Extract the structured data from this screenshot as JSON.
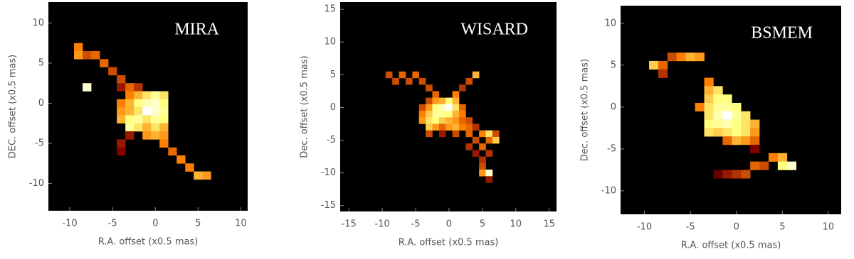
{
  "chart_data": [
    {
      "type": "heatmap",
      "title": "MIRA",
      "xlabel": "R.A. offset (x0.5 mas)",
      "ylabel": "DEC. offset (x0.5 mas)",
      "xlim": [
        -12.5,
        10.8
      ],
      "ylim": [
        -13.4,
        12.6
      ],
      "xticks": [
        -10,
        -5,
        0,
        5,
        10
      ],
      "yticks": [
        -10,
        -5,
        0,
        5,
        10
      ],
      "colormap": "afmhot",
      "cells": [
        [
          -9,
          7,
          0.5
        ],
        [
          -9,
          6,
          0.55
        ],
        [
          -8,
          6,
          0.4
        ],
        [
          -7,
          6,
          0.45
        ],
        [
          -6,
          5,
          0.45
        ],
        [
          -5,
          4,
          0.4
        ],
        [
          -4,
          3,
          0.4
        ],
        [
          -8,
          2,
          0.9
        ],
        [
          -4,
          2,
          0.3
        ],
        [
          -3,
          2,
          0.45
        ],
        [
          -2,
          2,
          0.35
        ],
        [
          -3,
          1,
          0.5
        ],
        [
          -2,
          1,
          0.6
        ],
        [
          -1,
          1,
          0.7
        ],
        [
          0,
          1,
          0.8
        ],
        [
          1,
          1,
          0.7
        ],
        [
          -4,
          0,
          0.5
        ],
        [
          -3,
          0,
          0.6
        ],
        [
          -2,
          0,
          0.75
        ],
        [
          -1,
          0,
          0.85
        ],
        [
          0,
          0,
          0.9
        ],
        [
          1,
          0,
          0.75
        ],
        [
          -4,
          -1,
          0.55
        ],
        [
          -3,
          -1,
          0.6
        ],
        [
          -2,
          -1,
          0.7
        ],
        [
          -1,
          -1,
          1
        ],
        [
          0,
          -1,
          0.9
        ],
        [
          1,
          -1,
          0.8
        ],
        [
          -4,
          -2,
          0.6
        ],
        [
          -3,
          -2,
          0.75
        ],
        [
          -2,
          -2,
          0.8
        ],
        [
          -1,
          -2,
          0.7
        ],
        [
          0,
          -2,
          0.8
        ],
        [
          1,
          -2,
          0.75
        ],
        [
          -3,
          -3,
          0.8
        ],
        [
          -2,
          -3,
          0.7
        ],
        [
          -1,
          -3,
          0.6
        ],
        [
          0,
          -3,
          0.7
        ],
        [
          1,
          -3,
          0.6
        ],
        [
          -3,
          -4,
          0.3
        ],
        [
          -1,
          -4,
          0.55
        ],
        [
          0,
          -4,
          0.6
        ],
        [
          1,
          -4,
          0.55
        ],
        [
          -4,
          -5,
          0.3
        ],
        [
          -4,
          -6,
          0.25
        ],
        [
          1,
          -5,
          0.5
        ],
        [
          2,
          -6,
          0.45
        ],
        [
          3,
          -7,
          0.5
        ],
        [
          4,
          -8,
          0.5
        ],
        [
          5,
          -9,
          0.6
        ],
        [
          6,
          -9,
          0.55
        ]
      ]
    },
    {
      "type": "heatmap",
      "title": "WISARD",
      "xlabel": "R.A. offset (x0.5 mas)",
      "ylabel": "Dec. offset (x0.5 mas)",
      "xlim": [
        -16.3,
        16.1
      ],
      "ylim": [
        -15.9,
        16.1
      ],
      "xticks": [
        -15,
        -10,
        -5,
        0,
        5,
        10,
        15
      ],
      "yticks": [
        -15,
        -10,
        -5,
        0,
        5,
        10,
        15
      ],
      "colormap": "afmhot",
      "cells": [
        [
          -9,
          5,
          0.4
        ],
        [
          -8,
          4,
          0.4
        ],
        [
          -7,
          5,
          0.45
        ],
        [
          -6,
          4,
          0.4
        ],
        [
          -5,
          5,
          0.45
        ],
        [
          -4,
          4,
          0.4
        ],
        [
          -3,
          3,
          0.4
        ],
        [
          -2,
          2,
          0.45
        ],
        [
          3,
          4,
          0.4
        ],
        [
          4,
          5,
          0.6
        ],
        [
          2,
          3,
          0.35
        ],
        [
          1,
          2,
          0.5
        ],
        [
          -3,
          1,
          0.4
        ],
        [
          -2,
          1,
          0.55
        ],
        [
          -1,
          1,
          0.6
        ],
        [
          0,
          1,
          0.75
        ],
        [
          1,
          1,
          0.6
        ],
        [
          -4,
          0,
          0.4
        ],
        [
          -3,
          0,
          0.55
        ],
        [
          -2,
          0,
          0.75
        ],
        [
          -1,
          0,
          0.85
        ],
        [
          0,
          0,
          1
        ],
        [
          1,
          0,
          0.7
        ],
        [
          2,
          0,
          0.45
        ],
        [
          -4,
          -1,
          0.5
        ],
        [
          -3,
          -1,
          0.65
        ],
        [
          -2,
          -1,
          0.8
        ],
        [
          -1,
          -1,
          0.8
        ],
        [
          0,
          -1,
          0.75
        ],
        [
          1,
          -1,
          0.6
        ],
        [
          2,
          -1,
          0.5
        ],
        [
          -4,
          -2,
          0.55
        ],
        [
          -3,
          -2,
          0.7
        ],
        [
          -2,
          -2,
          0.75
        ],
        [
          -1,
          -2,
          0.65
        ],
        [
          0,
          -2,
          0.6
        ],
        [
          1,
          -2,
          0.55
        ],
        [
          2,
          -2,
          0.45
        ],
        [
          3,
          -2,
          0.4
        ],
        [
          -3,
          -3,
          0.65
        ],
        [
          -2,
          -3,
          0.55
        ],
        [
          -1,
          -3,
          0.45
        ],
        [
          0,
          -3,
          0.55
        ],
        [
          1,
          -3,
          0.6
        ],
        [
          2,
          -3,
          0.5
        ],
        [
          3,
          -3,
          0.45
        ],
        [
          4,
          -3,
          0.35
        ],
        [
          -3,
          -4,
          0.4
        ],
        [
          -1,
          -4,
          0.3
        ],
        [
          1,
          -4,
          0.4
        ],
        [
          3,
          -4,
          0.45
        ],
        [
          5,
          -4,
          0.5
        ],
        [
          6,
          -4,
          0.7
        ],
        [
          7,
          -4,
          0.4
        ],
        [
          4,
          -5,
          0.4
        ],
        [
          6,
          -5,
          0.45
        ],
        [
          7,
          -5,
          0.65
        ],
        [
          5,
          -6,
          0.45
        ],
        [
          3,
          -6,
          0.35
        ],
        [
          4,
          -7,
          0.3
        ],
        [
          6,
          -7,
          0.35
        ],
        [
          5,
          -8,
          0.35
        ],
        [
          5,
          -9,
          0.4
        ],
        [
          5,
          -10,
          0.55
        ],
        [
          6,
          -10,
          0.9
        ],
        [
          6,
          -11,
          0.3
        ]
      ]
    },
    {
      "type": "heatmap",
      "title": "BSMEM",
      "xlabel": "R.A. offset (x0.5 mas)",
      "ylabel": "Dec. offset (x0.5 mas)",
      "xlim": [
        -12.6,
        11.4
      ],
      "ylim": [
        -12.8,
        12.1
      ],
      "xticks": [
        -10,
        -5,
        0,
        5,
        10
      ],
      "yticks": [
        -10,
        -5,
        0,
        5,
        10
      ],
      "colormap": "afmhot",
      "cells": [
        [
          -9,
          5,
          0.65
        ],
        [
          -8,
          5,
          0.45
        ],
        [
          -8,
          4,
          0.35
        ],
        [
          -7,
          6,
          0.4
        ],
        [
          -6,
          6,
          0.5
        ],
        [
          -5,
          6,
          0.6
        ],
        [
          -4,
          6,
          0.55
        ],
        [
          -3,
          3,
          0.5
        ],
        [
          -3,
          2,
          0.6
        ],
        [
          -2,
          2,
          0.7
        ],
        [
          -3,
          1,
          0.65
        ],
        [
          -2,
          1,
          0.75
        ],
        [
          -1,
          1,
          0.75
        ],
        [
          -4,
          0,
          0.5
        ],
        [
          -3,
          0,
          0.7
        ],
        [
          -2,
          0,
          0.8
        ],
        [
          -1,
          0,
          0.8
        ],
        [
          0,
          0,
          0.75
        ],
        [
          -3,
          -1,
          0.7
        ],
        [
          -2,
          -1,
          0.85
        ],
        [
          -1,
          -1,
          1
        ],
        [
          0,
          -1,
          0.8
        ],
        [
          1,
          -1,
          0.7
        ],
        [
          -3,
          -2,
          0.75
        ],
        [
          -2,
          -2,
          0.8
        ],
        [
          -1,
          -2,
          0.85
        ],
        [
          0,
          -2,
          0.75
        ],
        [
          1,
          -2,
          0.7
        ],
        [
          2,
          -2,
          0.6
        ],
        [
          -3,
          -3,
          0.7
        ],
        [
          -2,
          -3,
          0.65
        ],
        [
          -1,
          -3,
          0.7
        ],
        [
          0,
          -3,
          0.75
        ],
        [
          1,
          -3,
          0.7
        ],
        [
          2,
          -3,
          0.55
        ],
        [
          -1,
          -4,
          0.45
        ],
        [
          0,
          -4,
          0.6
        ],
        [
          1,
          -4,
          0.55
        ],
        [
          2,
          -4,
          0.45
        ],
        [
          2,
          -5,
          0.25
        ],
        [
          -2,
          -8,
          0.2
        ],
        [
          -1,
          -8,
          0.3
        ],
        [
          0,
          -8,
          0.35
        ],
        [
          1,
          -8,
          0.4
        ],
        [
          2,
          -7,
          0.45
        ],
        [
          3,
          -7,
          0.4
        ],
        [
          4,
          -6,
          0.5
        ],
        [
          5,
          -6,
          0.6
        ],
        [
          5,
          -7,
          0.75
        ],
        [
          6,
          -7,
          0.9
        ]
      ]
    }
  ]
}
